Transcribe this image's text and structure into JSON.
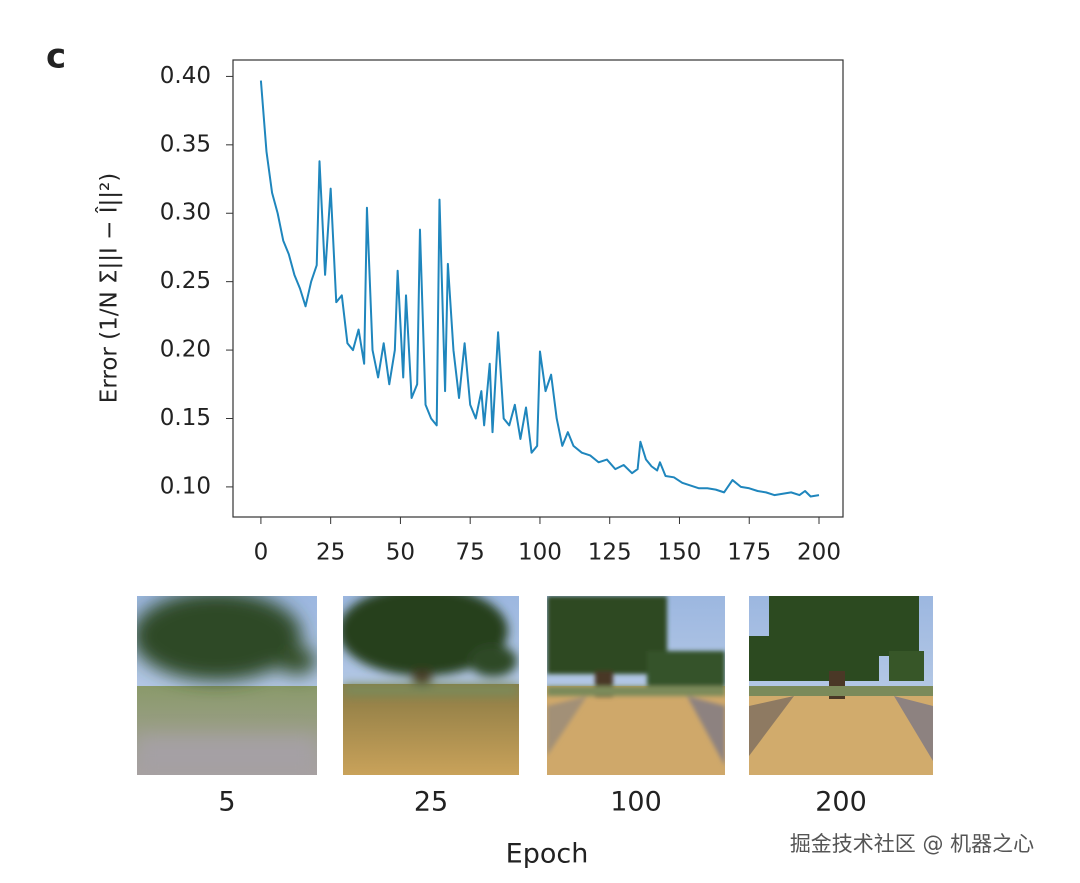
{
  "chart_data": {
    "type": "line",
    "panel_label": "c",
    "ylabel": "Error (1/N Σ||I − Î||²)",
    "xlabel": "Epoch",
    "x": [
      0,
      2,
      4,
      6,
      8,
      10,
      12,
      14,
      16,
      18,
      20,
      21,
      23,
      25,
      27,
      29,
      31,
      33,
      35,
      37,
      38,
      40,
      42,
      44,
      46,
      48,
      49,
      51,
      52,
      54,
      56,
      57,
      59,
      61,
      63,
      64,
      66,
      67,
      69,
      71,
      73,
      75,
      77,
      79,
      80,
      82,
      83,
      85,
      87,
      89,
      91,
      93,
      95,
      97,
      99,
      100,
      102,
      104,
      106,
      108,
      110,
      112,
      115,
      118,
      121,
      124,
      127,
      130,
      133,
      135,
      136,
      138,
      140,
      142,
      143,
      145,
      148,
      151,
      154,
      157,
      160,
      163,
      166,
      169,
      172,
      175,
      178,
      181,
      184,
      187,
      190,
      193,
      195,
      197,
      200
    ],
    "series": [
      {
        "color": "#1f86bd",
        "values": [
          0.397,
          0.345,
          0.315,
          0.3,
          0.28,
          0.27,
          0.255,
          0.245,
          0.232,
          0.25,
          0.262,
          0.338,
          0.255,
          0.318,
          0.235,
          0.24,
          0.205,
          0.2,
          0.215,
          0.19,
          0.304,
          0.2,
          0.18,
          0.205,
          0.175,
          0.2,
          0.258,
          0.18,
          0.24,
          0.165,
          0.175,
          0.288,
          0.16,
          0.15,
          0.145,
          0.31,
          0.17,
          0.263,
          0.2,
          0.165,
          0.205,
          0.16,
          0.15,
          0.17,
          0.145,
          0.19,
          0.14,
          0.213,
          0.15,
          0.145,
          0.16,
          0.135,
          0.158,
          0.125,
          0.13,
          0.199,
          0.17,
          0.182,
          0.15,
          0.13,
          0.14,
          0.13,
          0.125,
          0.123,
          0.118,
          0.12,
          0.113,
          0.116,
          0.11,
          0.113,
          0.133,
          0.12,
          0.115,
          0.112,
          0.118,
          0.108,
          0.107,
          0.103,
          0.101,
          0.099,
          0.099,
          0.098,
          0.096,
          0.105,
          0.1,
          0.099,
          0.097,
          0.096,
          0.094,
          0.095,
          0.096,
          0.094,
          0.097,
          0.093,
          0.094
        ]
      }
    ],
    "xlim": [
      -10,
      208.6
    ],
    "ylim": [
      0.078,
      0.412
    ],
    "xticks": [
      0,
      25,
      50,
      75,
      100,
      125,
      150,
      175,
      200
    ],
    "yticks": [
      {
        "value": 0.1,
        "label": "0.10"
      },
      {
        "value": 0.15,
        "label": "0.15"
      },
      {
        "value": 0.2,
        "label": "0.20"
      },
      {
        "value": 0.25,
        "label": "0.25"
      },
      {
        "value": 0.3,
        "label": "0.30"
      },
      {
        "value": 0.35,
        "label": "0.35"
      },
      {
        "value": 0.4,
        "label": "0.40"
      }
    ],
    "thumbnail_labels": [
      "5",
      "25",
      "100",
      "200"
    ]
  },
  "watermark": "掘金技术社区 @ 机器之心"
}
